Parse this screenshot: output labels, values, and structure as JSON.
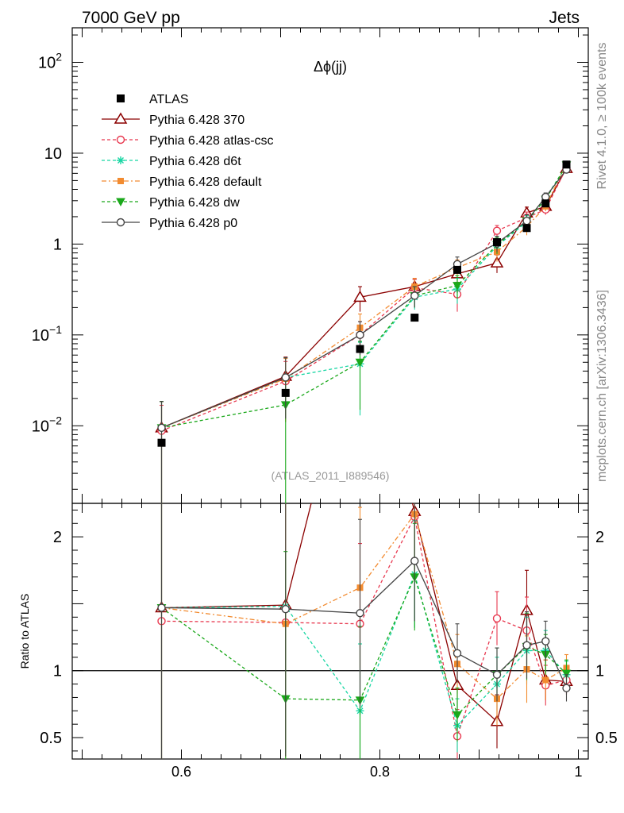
{
  "header": {
    "left": "7000 GeV pp",
    "right": "Jets"
  },
  "side_labels": {
    "top": "Rivet 4.1.0, ≥ 100k events",
    "bottom": "mcplots.cern.ch [arXiv:1306.3436]"
  },
  "chart_data": {
    "type": "line",
    "title": "Δϕ(jj)",
    "watermark": "(ATLAS_2011_I889546)",
    "xlim": [
      0.49,
      1.01
    ],
    "ylim": [
      0.0014,
      240
    ],
    "yscale": "log",
    "ratio_ylabel": "Ratio to ATLAS",
    "ratio_ylim": [
      0.34,
      2.25
    ],
    "ratio_ref": 1,
    "x_ticks": [
      {
        "v": 0.6,
        "label": "0.6"
      },
      {
        "v": 0.8,
        "label": "0.8"
      },
      {
        "v": 1.0,
        "label": "1"
      }
    ],
    "y_ticks": [
      {
        "v": 0.01,
        "base": "10",
        "exp": "−2"
      },
      {
        "v": 0.1,
        "base": "10",
        "exp": "−1"
      },
      {
        "v": 1,
        "base": "1",
        "exp": ""
      },
      {
        "v": 10,
        "base": "10",
        "exp": ""
      },
      {
        "v": 100,
        "base": "10",
        "exp": "2"
      }
    ],
    "ratio_ticks": [
      {
        "v": 0.5,
        "label": "0.5"
      },
      {
        "v": 1,
        "label": "1"
      },
      {
        "v": 2,
        "label": "2"
      }
    ],
    "x": [
      0.58,
      0.705,
      0.78,
      0.835,
      0.878,
      0.918,
      0.948,
      0.967,
      0.988
    ],
    "data": {
      "name": "ATLAS",
      "color": "#000000",
      "values": [
        0.0065,
        0.023,
        0.07,
        0.155,
        0.52,
        1.05,
        1.5,
        2.8,
        7.5
      ]
    },
    "series": [
      {
        "name": "Pythia 6.428 370",
        "color": "#8b0000",
        "marker": "triangle",
        "dash": "",
        "values": [
          0.0095,
          0.035,
          0.26,
          0.34,
          0.47,
          0.62,
          2.2,
          2.6,
          6.8
        ],
        "errors": [
          0.009,
          0.022,
          0.08,
          0.07,
          0.09,
          0.14,
          0.35,
          0.3,
          0.4
        ],
        "ratio": [
          1.47,
          1.49,
          3.7,
          2.19,
          0.89,
          0.62,
          1.45,
          0.93,
          0.92
        ],
        "ratio_err": [
          1.4,
          1.1,
          1.0,
          0.4,
          0.18,
          0.2,
          0.3,
          0.15,
          0.1
        ]
      },
      {
        "name": "Pythia 6.428 atlas-csc",
        "color": "#e8384f",
        "marker": "circle",
        "dash": "4,3",
        "values": [
          0.0088,
          0.031,
          0.1,
          0.33,
          0.28,
          1.4,
          1.95,
          2.4,
          6.9
        ],
        "errors": [
          0.008,
          0.02,
          0.04,
          0.08,
          0.1,
          0.2,
          0.3,
          0.3,
          0.4
        ],
        "ratio": [
          1.37,
          1.36,
          1.35,
          2.15,
          0.51,
          1.39,
          1.3,
          0.89,
          0.93
        ],
        "ratio_err": [
          1.2,
          1.0,
          0.6,
          0.45,
          0.2,
          0.2,
          0.25,
          0.15,
          0.1
        ]
      },
      {
        "name": "Pythia 6.428 d6t",
        "color": "#17d6a3",
        "marker": "star",
        "dash": "4,3",
        "values": [
          0.0095,
          0.034,
          0.048,
          0.26,
          0.32,
          0.95,
          1.75,
          3.2,
          7.3
        ],
        "errors": [
          0.009,
          0.022,
          0.035,
          0.07,
          0.1,
          0.2,
          0.3,
          0.35,
          0.4
        ],
        "ratio": [
          1.47,
          1.48,
          0.7,
          1.72,
          0.59,
          0.9,
          1.15,
          1.15,
          0.97
        ],
        "ratio_err": [
          1.4,
          1.1,
          0.5,
          0.4,
          0.2,
          0.2,
          0.25,
          0.15,
          0.1
        ]
      },
      {
        "name": "Pythia 6.428 default",
        "color": "#f28b30",
        "marker": "square",
        "dash": "6,3,2,3",
        "values": [
          0.0095,
          0.033,
          0.12,
          0.34,
          0.55,
          0.82,
          1.55,
          2.6,
          7.6
        ],
        "errors": [
          0.009,
          0.022,
          0.05,
          0.08,
          0.12,
          0.18,
          0.3,
          0.3,
          0.4
        ],
        "ratio": [
          1.47,
          1.35,
          1.62,
          2.17,
          1.05,
          0.79,
          1.01,
          0.93,
          1.02
        ],
        "ratio_err": [
          1.4,
          1.0,
          0.6,
          0.45,
          0.22,
          0.2,
          0.25,
          0.15,
          0.1
        ]
      },
      {
        "name": "Pythia 6.428 dw",
        "color": "#1aa81a",
        "marker": "triangle-down",
        "dash": "4,3",
        "values": [
          0.0095,
          0.017,
          0.05,
          0.27,
          0.35,
          0.98,
          1.8,
          3.1,
          7.4
        ],
        "errors": [
          0.009,
          0.02,
          0.035,
          0.07,
          0.1,
          0.2,
          0.3,
          0.35,
          0.4
        ],
        "ratio": [
          1.47,
          0.79,
          0.78,
          1.7,
          0.67,
          0.97,
          1.18,
          1.12,
          0.98
        ],
        "ratio_err": [
          1.4,
          1.1,
          0.55,
          0.4,
          0.2,
          0.2,
          0.25,
          0.15,
          0.1
        ]
      },
      {
        "name": "Pythia 6.428 p0",
        "color": "#444444",
        "marker": "circle-open",
        "dash": "",
        "values": [
          0.0095,
          0.034,
          0.1,
          0.27,
          0.6,
          1.02,
          1.8,
          3.3,
          6.6
        ],
        "errors": [
          0.009,
          0.022,
          0.04,
          0.07,
          0.12,
          0.2,
          0.3,
          0.35,
          0.4
        ],
        "ratio": [
          1.47,
          1.46,
          1.43,
          1.82,
          1.13,
          0.97,
          1.19,
          1.22,
          0.87
        ],
        "ratio_err": [
          1.4,
          1.1,
          0.7,
          0.45,
          0.22,
          0.2,
          0.25,
          0.15,
          0.1
        ]
      }
    ]
  }
}
